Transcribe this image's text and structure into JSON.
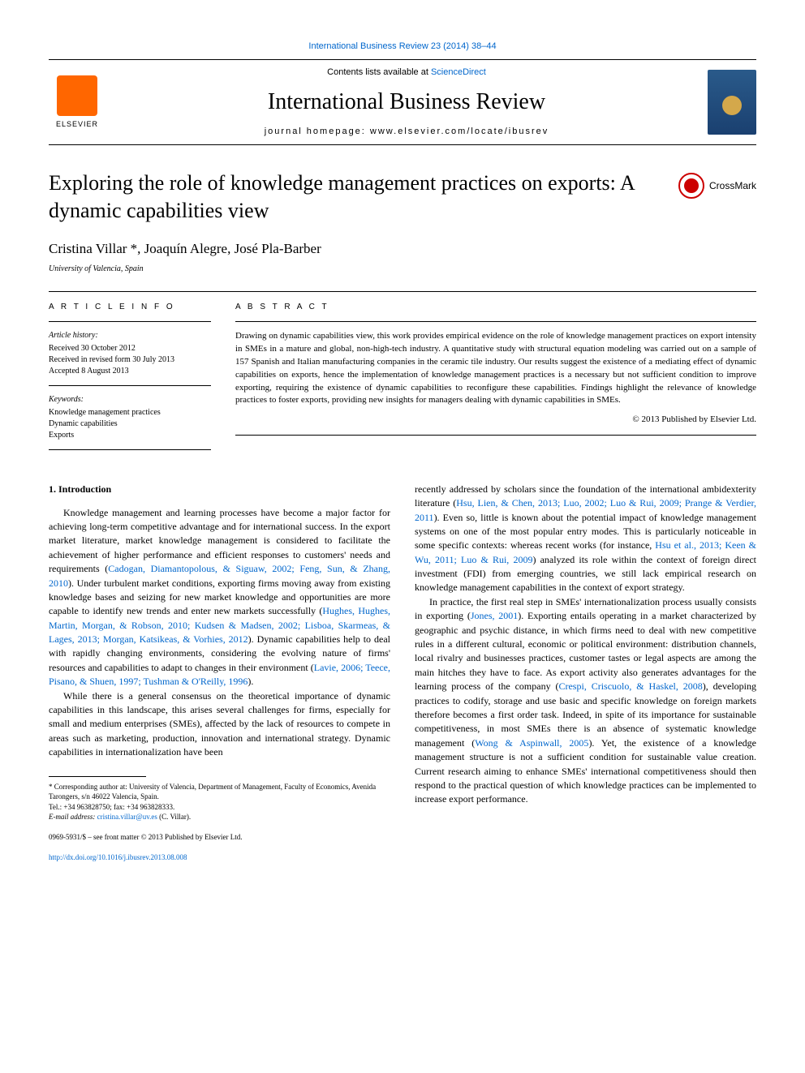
{
  "top_citation": "International Business Review 23 (2014) 38–44",
  "header": {
    "contents_prefix": "Contents lists available at ",
    "contents_link": "ScienceDirect",
    "journal_name": "International Business Review",
    "homepage_prefix": "journal homepage: ",
    "homepage_url": "www.elsevier.com/locate/ibusrev",
    "publisher_name": "ELSEVIER"
  },
  "crossmark_label": "CrossMark",
  "title": "Exploring the role of knowledge management practices on exports: A dynamic capabilities view",
  "authors_line": "Cristina Villar *, Joaquín Alegre, José Pla-Barber",
  "affiliation": "University of Valencia, Spain",
  "article_info": {
    "heading": "A R T I C L E   I N F O",
    "history_label": "Article history:",
    "received": "Received 30 October 2012",
    "revised": "Received in revised form 30 July 2013",
    "accepted": "Accepted 8 August 2013",
    "keywords_label": "Keywords:",
    "keywords": [
      "Knowledge management practices",
      "Dynamic capabilities",
      "Exports"
    ]
  },
  "abstract": {
    "heading": "A B S T R A C T",
    "text": "Drawing on dynamic capabilities view, this work provides empirical evidence on the role of knowledge management practices on export intensity in SMEs in a mature and global, non-high-tech industry. A quantitative study with structural equation modeling was carried out on a sample of 157 Spanish and Italian manufacturing companies in the ceramic tile industry. Our results suggest the existence of a mediating effect of dynamic capabilities on exports, hence the implementation of knowledge management practices is a necessary but not sufficient condition to improve exporting, requiring the existence of dynamic capabilities to reconfigure these capabilities. Findings highlight the relevance of knowledge practices to foster exports, providing new insights for managers dealing with dynamic capabilities in SMEs.",
    "copyright": "© 2013 Published by Elsevier Ltd."
  },
  "section1_heading": "1. Introduction",
  "body": {
    "col1_p1_a": "Knowledge management and learning processes have become a major factor for achieving long-term competitive advantage and for international success. In the export market literature, market knowledge management is considered to facilitate the achievement of higher performance and efficient responses to customers' needs and requirements (",
    "col1_p1_cite1": "Cadogan, Diamantopolous, & Siguaw, 2002; Feng, Sun, & Zhang, 2010",
    "col1_p1_b": "). Under turbulent market conditions, exporting firms moving away from existing knowledge bases and seizing for new market knowledge and opportunities are more capable to identify new trends and enter new markets successfully (",
    "col1_p1_cite2": "Hughes, Hughes, Martin, Morgan, & Robson, 2010; Kudsen & Madsen, 2002; Lisboa, Skarmeas, & Lages, 2013; Morgan, Katsikeas, & Vorhies, 2012",
    "col1_p1_c": "). Dynamic capabilities help to deal with rapidly changing environments, considering the evolving nature of firms' resources and capabilities to adapt to changes in their environment (",
    "col1_p1_cite3": "Lavie, 2006; Teece, Pisano, & Shuen, 1997; Tushman & O'Reilly, 1996",
    "col1_p1_d": ").",
    "col1_p2": "While there is a general consensus on the theoretical importance of dynamic capabilities in this landscape, this arises several challenges for firms, especially for small and medium enterprises (SMEs), affected by the lack of resources to compete in areas such as marketing, production, innovation and international strategy. Dynamic capabilities in internationalization have been",
    "col2_p1_a": "recently addressed by scholars since the foundation of the international ambidexterity literature (",
    "col2_p1_cite1": "Hsu, Lien, & Chen, 2013; Luo, 2002; Luo & Rui, 2009; Prange & Verdier, 2011",
    "col2_p1_b": "). Even so, little is known about the potential impact of knowledge management systems on one of the most popular entry modes. This is particularly noticeable in some specific contexts: whereas recent works (for instance, ",
    "col2_p1_cite2": "Hsu et al., 2013; Keen & Wu, 2011; Luo & Rui, 2009",
    "col2_p1_c": ") analyzed its role within the context of foreign direct investment (FDI) from emerging countries, we still lack empirical research on knowledge management capabilities in the context of export strategy.",
    "col2_p2_a": "In practice, the first real step in SMEs' internationalization process usually consists in exporting (",
    "col2_p2_cite1": "Jones, 2001",
    "col2_p2_b": "). Exporting entails operating in a market characterized by geographic and psychic distance, in which firms need to deal with new competitive rules in a different cultural, economic or political environment: distribution channels, local rivalry and businesses practices, customer tastes or legal aspects are among the main hitches they have to face. As export activity also generates advantages for the learning process of the company (",
    "col2_p2_cite2": "Crespi, Criscuolo, & Haskel, 2008",
    "col2_p2_c": "), developing practices to codify, storage and use basic and specific knowledge on foreign markets therefore becomes a first order task. Indeed, in spite of its importance for sustainable competitiveness, in most SMEs there is an absence of systematic knowledge management (",
    "col2_p2_cite3": "Wong & Aspinwall, 2005",
    "col2_p2_d": "). Yet, the existence of a knowledge management structure is not a sufficient condition for sustainable value creation. Current research aiming to enhance SMEs' international competitiveness should then respond to the practical question of which knowledge practices can be implemented to increase export performance."
  },
  "footnote": {
    "corresponding": "* Corresponding author at: University of Valencia, Department of Management, Faculty of Economics, Avenida Tarongers, s/n 46022 Valencia, Spain.",
    "tel": "Tel.: +34 963828750; fax: +34 963828333.",
    "email_label": "E-mail address: ",
    "email": "cristina.villar@uv.es",
    "email_suffix": " (C. Villar)."
  },
  "bottom": {
    "issn_line": "0969-5931/$ – see front matter © 2013 Published by Elsevier Ltd.",
    "doi": "http://dx.doi.org/10.1016/j.ibusrev.2013.08.008"
  },
  "colors": {
    "link": "#0066cc",
    "elsevier_orange": "#ff6600",
    "cover_blue": "#2a5a8a",
    "cover_gold": "#d4a84b",
    "crossmark_red": "#cc0000",
    "text": "#000000",
    "background": "#ffffff"
  },
  "typography": {
    "body_pt": 12,
    "title_pt": 26,
    "journal_pt": 28,
    "authors_pt": 17,
    "abstract_pt": 11,
    "info_pt": 10,
    "footnote_pt": 9
  }
}
